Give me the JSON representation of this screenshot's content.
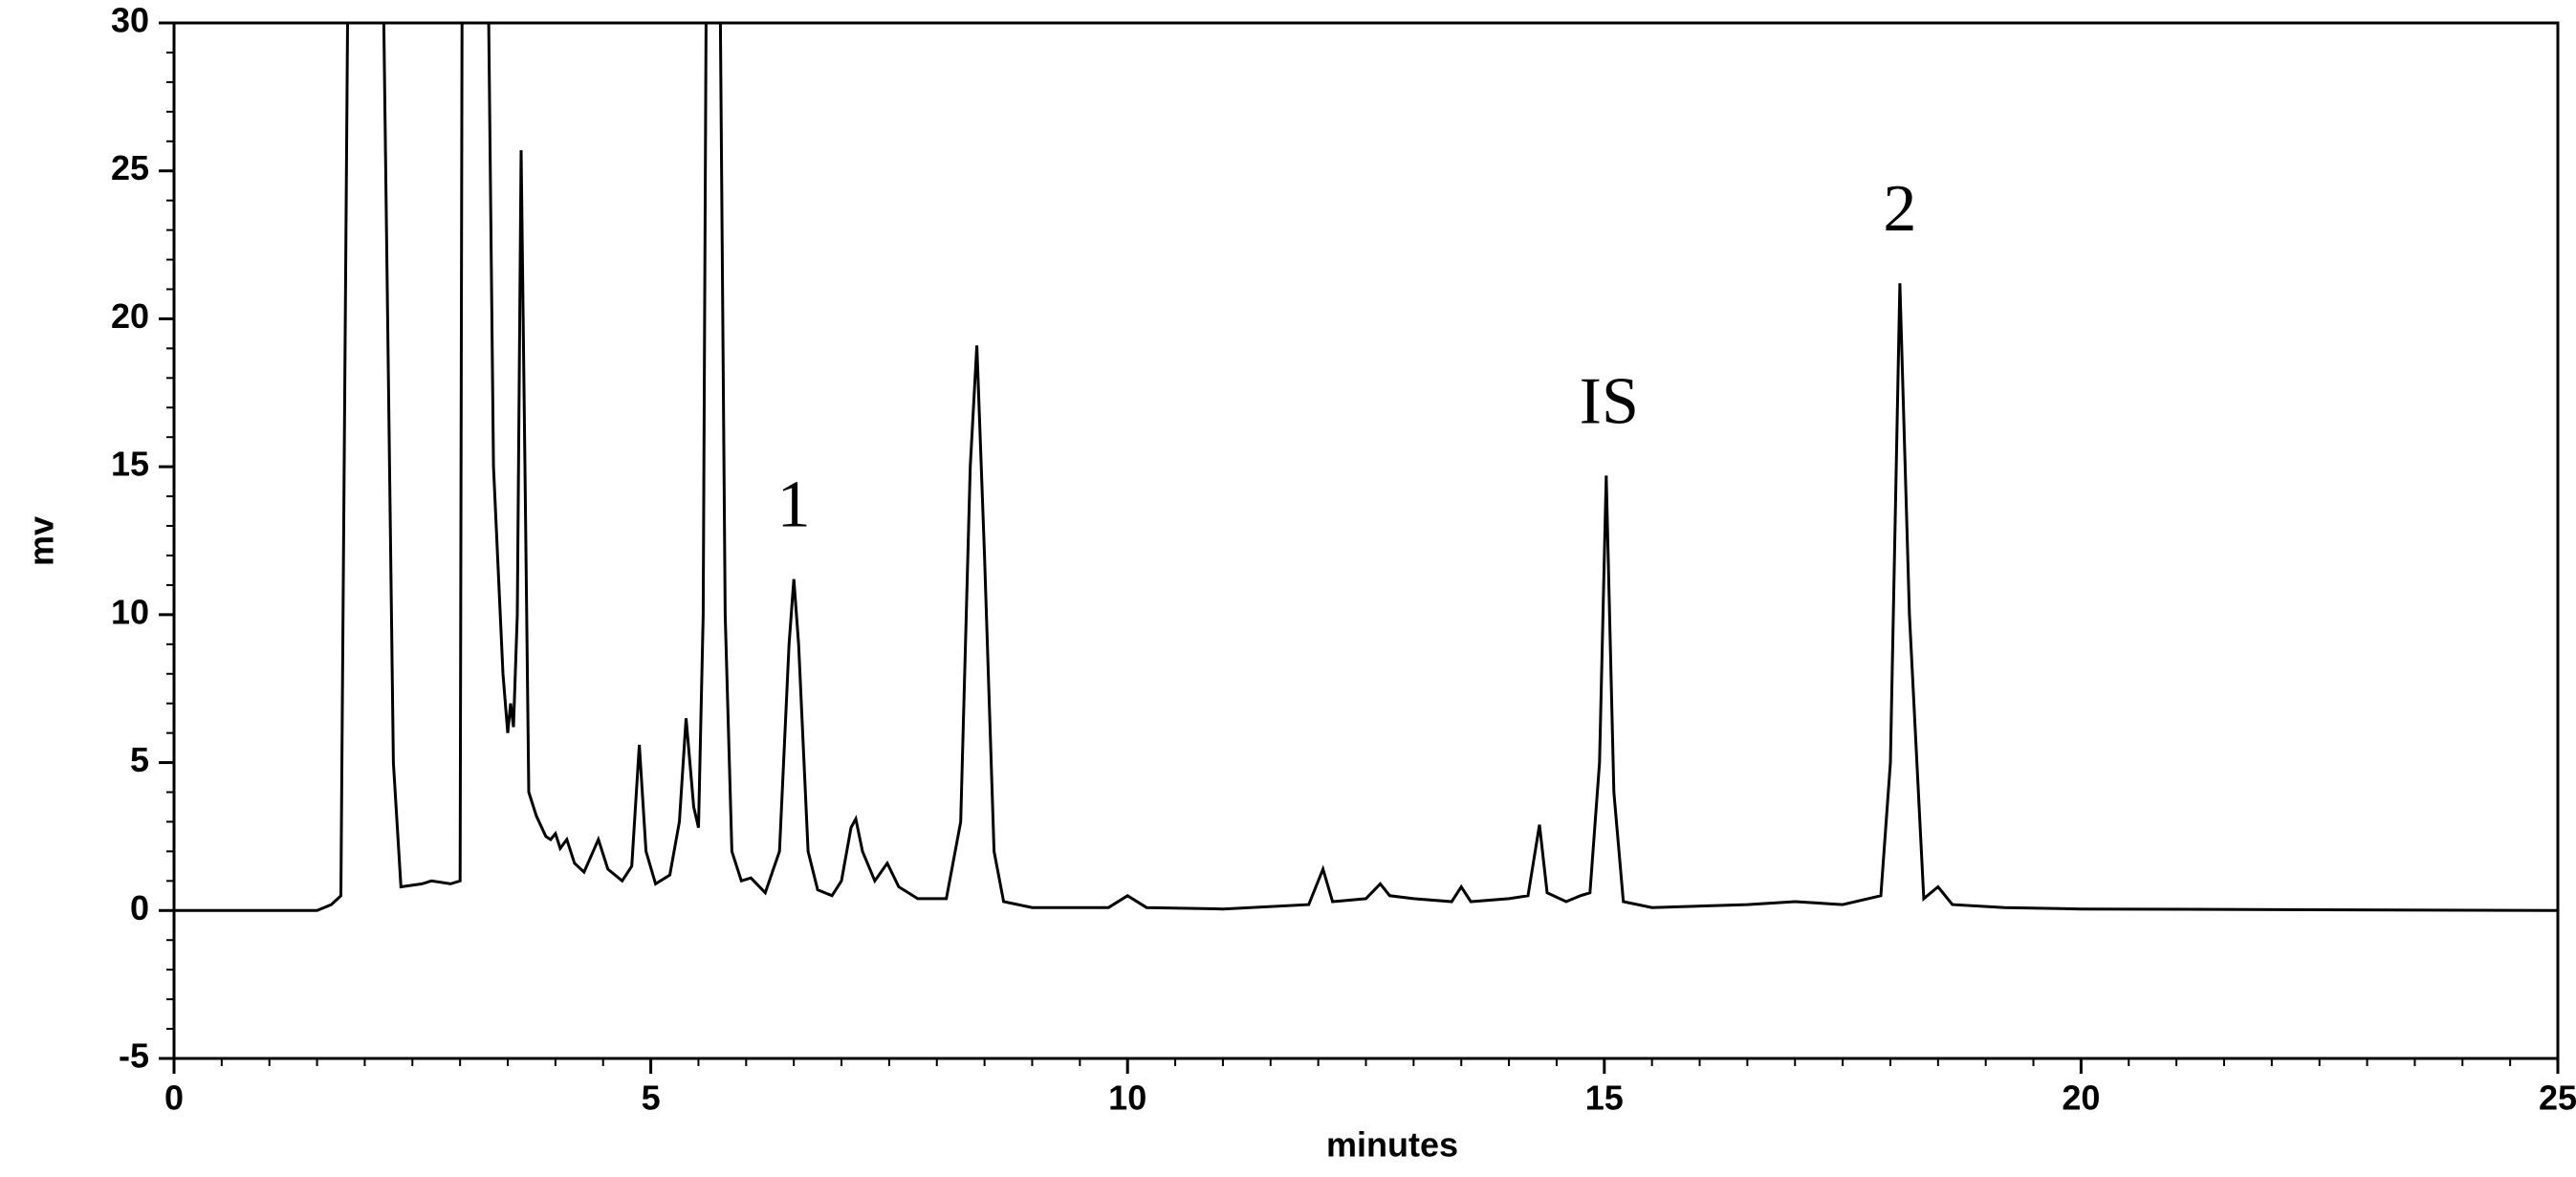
{
  "chart_data": {
    "type": "line",
    "xlabel": "minutes",
    "ylabel": "mv",
    "xlim": [
      0,
      25
    ],
    "xticks": [
      0,
      5,
      10,
      15,
      20,
      25
    ],
    "ylim": [
      -5,
      30
    ],
    "yticks": [
      -5,
      0,
      5,
      10,
      15,
      20,
      25,
      30
    ],
    "x": [
      0,
      1.5,
      1.65,
      1.75,
      1.82,
      2.2,
      2.3,
      2.38,
      2.6,
      2.7,
      2.9,
      3.0,
      3.02,
      3.3,
      3.35,
      3.45,
      3.5,
      3.53,
      3.56,
      3.6,
      3.64,
      3.68,
      3.72,
      3.8,
      3.9,
      3.95,
      4.0,
      4.05,
      4.12,
      4.2,
      4.3,
      4.45,
      4.55,
      4.7,
      4.8,
      4.88,
      4.95,
      5.05,
      5.2,
      5.3,
      5.37,
      5.45,
      5.5,
      5.55,
      5.58,
      5.73,
      5.78,
      5.85,
      5.95,
      6.05,
      6.2,
      6.35,
      6.45,
      6.5,
      6.55,
      6.65,
      6.75,
      6.9,
      7.0,
      7.1,
      7.15,
      7.22,
      7.35,
      7.48,
      7.6,
      7.8,
      8.1,
      8.25,
      8.35,
      8.42,
      8.5,
      8.6,
      8.7,
      9.0,
      9.8,
      10.0,
      10.2,
      11.0,
      11.9,
      12.05,
      12.15,
      12.5,
      12.65,
      12.75,
      13.0,
      13.4,
      13.5,
      13.6,
      14.0,
      14.2,
      14.32,
      14.4,
      14.6,
      14.75,
      14.85,
      14.95,
      15.02,
      15.1,
      15.2,
      15.5,
      16.5,
      17.0,
      17.5,
      17.9,
      18.0,
      18.1,
      18.2,
      18.35,
      18.5,
      18.65,
      19.2,
      20,
      25
    ],
    "series": [
      {
        "color": "#000000",
        "values": [
          0,
          0,
          0.2,
          0.5,
          30,
          30,
          5,
          0.8,
          0.9,
          1.0,
          0.9,
          1.0,
          30,
          30,
          15,
          8,
          6,
          7,
          6.2,
          10,
          25.7,
          15,
          4,
          3.2,
          2.5,
          2.4,
          2.6,
          2.1,
          2.4,
          1.6,
          1.3,
          2.4,
          1.4,
          1.0,
          1.5,
          5.6,
          2,
          0.9,
          1.2,
          3,
          6.5,
          3.5,
          2.8,
          10,
          30,
          30,
          10,
          2,
          1,
          1.1,
          0.6,
          2,
          9,
          11.2,
          9,
          2,
          0.7,
          0.5,
          1.0,
          2.8,
          3.1,
          2,
          1.0,
          1.6,
          0.8,
          0.4,
          0.4,
          3,
          15,
          19.1,
          12,
          2,
          0.3,
          0.1,
          0.1,
          0.5,
          0.1,
          0.05,
          0.2,
          1.4,
          0.3,
          0.4,
          0.9,
          0.5,
          0.4,
          0.3,
          0.8,
          0.3,
          0.4,
          0.5,
          2.9,
          0.6,
          0.3,
          0.5,
          0.6,
          5,
          14.7,
          4,
          0.3,
          0.1,
          0.2,
          0.3,
          0.2,
          0.5,
          5,
          21.2,
          10,
          0.4,
          0.8,
          0.2,
          0.1,
          0.05,
          0
        ]
      }
    ],
    "annotations": [
      {
        "text": "1",
        "x": 6.5,
        "y": 13.5
      },
      {
        "text": "IS",
        "x": 15.05,
        "y": 17
      },
      {
        "text": "2",
        "x": 18.1,
        "y": 23.5
      }
    ]
  }
}
